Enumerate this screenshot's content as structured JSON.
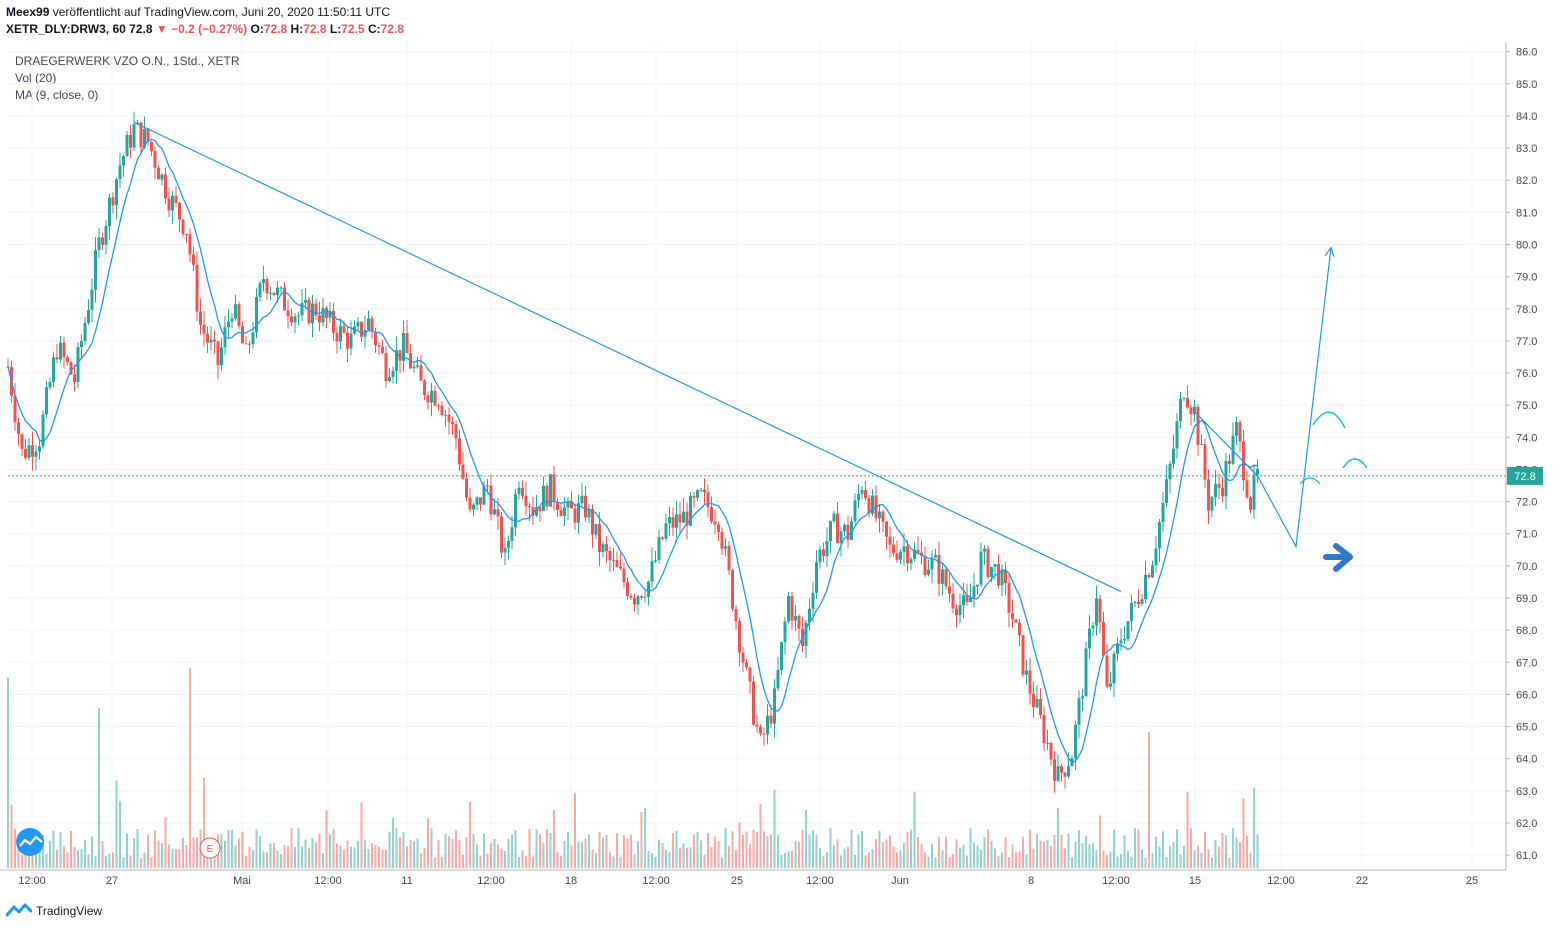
{
  "header": {
    "author": "Meex99",
    "published_text": "veröffentlicht auf TradingView.com, Juni 20, 2020 11:50:11 UTC",
    "symbol": "XETR_DLY:DRW3, 60",
    "last": "72.8",
    "change": "−0.2 (−0.27%)",
    "o_label": "O:",
    "o": "72.8",
    "h_label": "H:",
    "h": "72.8",
    "l_label": "L:",
    "l": "72.5",
    "c_label": "C:",
    "c": "72.8"
  },
  "legend": {
    "title": "DRAEGERWERK VZO O.N., 1Std., XETR",
    "vol": "Vol (20)",
    "ma": "MA (9, close, 0)"
  },
  "earnings_marker": "E",
  "footer": {
    "brand": "TradingView"
  },
  "colors": {
    "up": "#26a69a",
    "down": "#ef5350",
    "ma": "#2196f3",
    "draw": "#1e9bd7",
    "arrow": "#3179c6"
  },
  "chart_data": {
    "type": "candlestick",
    "title": "DRAEGERWERK VZO O.N., 1Std., XETR",
    "ylim": [
      60.6,
      86.3
    ],
    "y_ticks": [
      "86.0",
      "85.0",
      "84.0",
      "83.0",
      "82.0",
      "81.0",
      "80.0",
      "79.0",
      "78.0",
      "77.0",
      "76.0",
      "75.0",
      "74.0",
      "73.0",
      "72.0",
      "71.0",
      "70.0",
      "69.0",
      "68.0",
      "67.0",
      "66.0",
      "65.0",
      "64.0",
      "63.0",
      "62.0",
      "61.0"
    ],
    "x_ticks": [
      "12:00",
      "27",
      "Mai",
      "12:00",
      "11",
      "12:00",
      "18",
      "12:00",
      "25",
      "12:00",
      "Jun",
      "8",
      "12:00",
      "15",
      "12:00",
      "22",
      "25"
    ],
    "last_price_label": "72.8",
    "anchors": [
      {
        "t": 0,
        "p": 76.2
      },
      {
        "t": 4,
        "p": 73.5
      },
      {
        "t": 9,
        "p": 74.0
      },
      {
        "t": 14,
        "p": 76.8
      },
      {
        "t": 19,
        "p": 75.8
      },
      {
        "t": 26,
        "p": 80.0
      },
      {
        "t": 32,
        "p": 82.5
      },
      {
        "t": 36,
        "p": 83.6
      },
      {
        "t": 40,
        "p": 83.2
      },
      {
        "t": 46,
        "p": 81.5
      },
      {
        "t": 51,
        "p": 80.5
      },
      {
        "t": 55,
        "p": 77.5
      },
      {
        "t": 60,
        "p": 76.3
      },
      {
        "t": 64,
        "p": 78.1
      },
      {
        "t": 68,
        "p": 76.5
      },
      {
        "t": 73,
        "p": 79.0
      },
      {
        "t": 78,
        "p": 78.3
      },
      {
        "t": 83,
        "p": 77.8
      },
      {
        "t": 88,
        "p": 78.0
      },
      {
        "t": 93,
        "p": 77.4
      },
      {
        "t": 98,
        "p": 77.0
      },
      {
        "t": 103,
        "p": 77.6
      },
      {
        "t": 108,
        "p": 76.2
      },
      {
        "t": 113,
        "p": 76.8
      },
      {
        "t": 118,
        "p": 75.6
      },
      {
        "t": 123,
        "p": 75.3
      },
      {
        "t": 128,
        "p": 74.0
      },
      {
        "t": 132,
        "p": 71.5
      },
      {
        "t": 137,
        "p": 72.5
      },
      {
        "t": 142,
        "p": 70.2
      },
      {
        "t": 146,
        "p": 72.8
      },
      {
        "t": 150,
        "p": 71.8
      },
      {
        "t": 155,
        "p": 72.4
      },
      {
        "t": 160,
        "p": 71.6
      },
      {
        "t": 165,
        "p": 71.8
      },
      {
        "t": 169,
        "p": 70.6
      },
      {
        "t": 174,
        "p": 69.8
      },
      {
        "t": 179,
        "p": 69.1
      },
      {
        "t": 183,
        "p": 69.5
      },
      {
        "t": 188,
        "p": 71.2
      },
      {
        "t": 193,
        "p": 71.5
      },
      {
        "t": 198,
        "p": 72.1
      },
      {
        "t": 203,
        "p": 71.5
      },
      {
        "t": 207,
        "p": 69.0
      },
      {
        "t": 211,
        "p": 66.5
      },
      {
        "t": 215,
        "p": 64.4
      },
      {
        "t": 219,
        "p": 65.8
      },
      {
        "t": 223,
        "p": 69.0
      },
      {
        "t": 227,
        "p": 67.5
      },
      {
        "t": 231,
        "p": 70.2
      },
      {
        "t": 236,
        "p": 71.2
      },
      {
        "t": 240,
        "p": 71.0
      },
      {
        "t": 244,
        "p": 72.6
      },
      {
        "t": 248,
        "p": 71.5
      },
      {
        "t": 252,
        "p": 70.5
      },
      {
        "t": 256,
        "p": 70.6
      },
      {
        "t": 261,
        "p": 70.2
      },
      {
        "t": 265,
        "p": 70.0
      },
      {
        "t": 270,
        "p": 69.0
      },
      {
        "t": 274,
        "p": 68.6
      },
      {
        "t": 278,
        "p": 70.2
      },
      {
        "t": 283,
        "p": 69.8
      },
      {
        "t": 287,
        "p": 68.4
      },
      {
        "t": 291,
        "p": 66.5
      },
      {
        "t": 296,
        "p": 64.8
      },
      {
        "t": 300,
        "p": 63.4
      },
      {
        "t": 304,
        "p": 64.2
      },
      {
        "t": 308,
        "p": 67.0
      },
      {
        "t": 311,
        "p": 69.2
      },
      {
        "t": 314,
        "p": 66.0
      },
      {
        "t": 318,
        "p": 67.8
      },
      {
        "t": 322,
        "p": 68.8
      },
      {
        "t": 327,
        "p": 70.3
      },
      {
        "t": 331,
        "p": 72.4
      },
      {
        "t": 336,
        "p": 75.6
      },
      {
        "t": 339,
        "p": 74.8
      },
      {
        "t": 343,
        "p": 72.0
      },
      {
        "t": 347,
        "p": 72.6
      },
      {
        "t": 351,
        "p": 74.2
      },
      {
        "t": 355,
        "p": 72.0
      },
      {
        "t": 357,
        "p": 72.8
      }
    ],
    "volumes": [
      {
        "t": 0,
        "v": 0.95
      },
      {
        "t": 26,
        "v": 0.8
      },
      {
        "t": 52,
        "v": 1.0
      },
      {
        "t": 56,
        "v": 0.45
      },
      {
        "t": 132,
        "v": 0.33
      },
      {
        "t": 215,
        "v": 0.32
      },
      {
        "t": 300,
        "v": 0.3
      },
      {
        "t": 326,
        "v": 0.68
      },
      {
        "t": 337,
        "v": 0.38
      },
      {
        "t": 356,
        "v": 0.4
      }
    ],
    "drawings": {
      "trendline": [
        [
          36,
          83.8
        ],
        [
          318,
          69.2
        ]
      ],
      "projection": [
        [
          339,
          74.8
        ],
        [
          357,
          72.8
        ],
        [
          368,
          70.6
        ],
        [
          378,
          79.9
        ]
      ]
    }
  }
}
